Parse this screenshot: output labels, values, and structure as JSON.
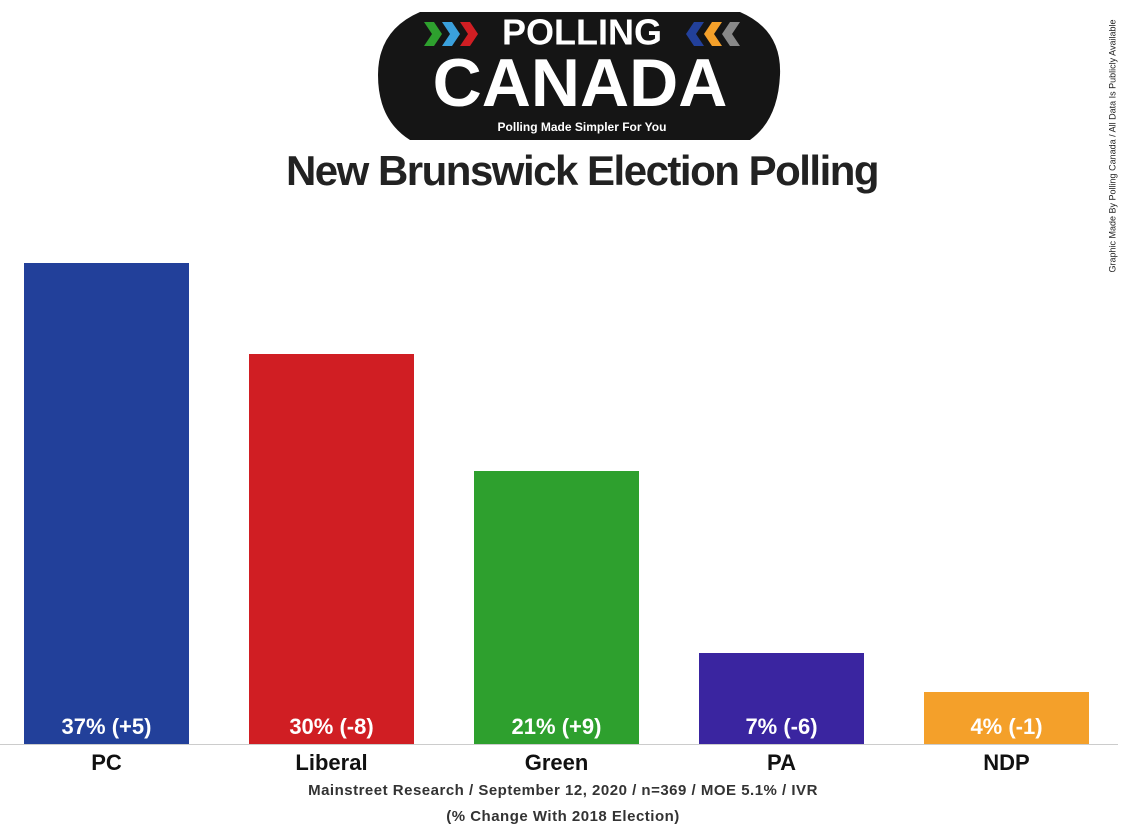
{
  "logo": {
    "top": "POLLING",
    "main": "CANADA",
    "tagline": "Polling Made Simpler For You"
  },
  "side_note": "Graphic Made By Polling Canada / All Data Is Publicly Available",
  "chart_data": {
    "type": "bar",
    "title": "New Brunswick Election Polling",
    "categories": [
      "PC",
      "Liberal",
      "Green",
      "PA",
      "NDP"
    ],
    "values": [
      37,
      30,
      21,
      7,
      4
    ],
    "value_labels": [
      "37% (+5)",
      "30% (-8)",
      "21% (+9)",
      "7% (-6)",
      "4% (-1)"
    ],
    "colors": [
      "#22409a",
      "#d01e23",
      "#2ea02e",
      "#3a25a0",
      "#f4a02a"
    ],
    "source": "Mainstreet Research / September 12, 2020 / n=369 / MOE 5.1% / IVR",
    "note": "(% Change With 2018 Election)"
  }
}
